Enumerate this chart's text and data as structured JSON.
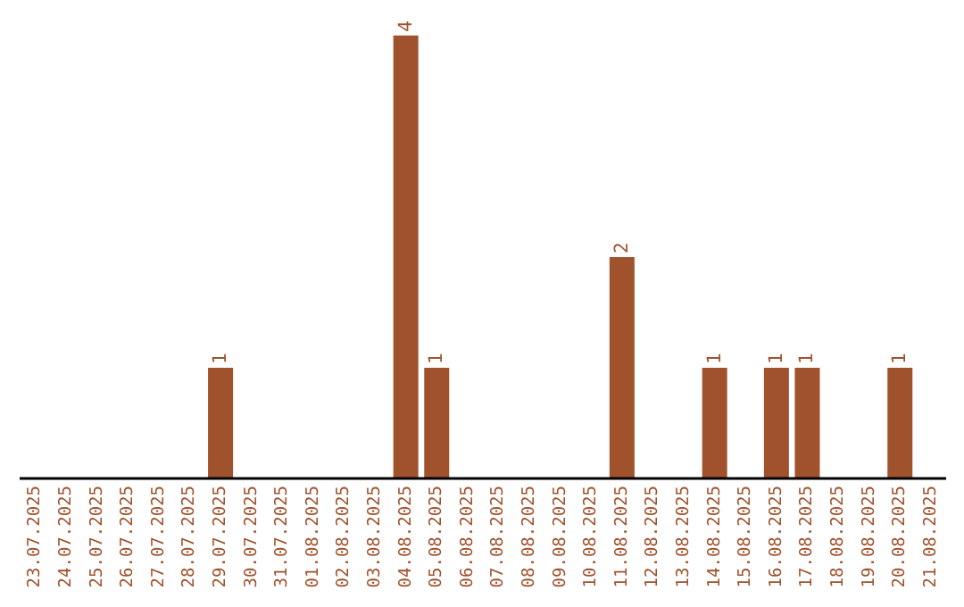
{
  "chart_data": {
    "type": "bar",
    "categories": [
      "23.07.2025",
      "24.07.2025",
      "25.07.2025",
      "26.07.2025",
      "27.07.2025",
      "28.07.2025",
      "29.07.2025",
      "30.07.2025",
      "31.07.2025",
      "01.08.2025",
      "02.08.2025",
      "03.08.2025",
      "04.08.2025",
      "05.08.2025",
      "06.08.2025",
      "07.08.2025",
      "08.08.2025",
      "09.08.2025",
      "10.08.2025",
      "11.08.2025",
      "12.08.2025",
      "13.08.2025",
      "14.08.2025",
      "15.08.2025",
      "16.08.2025",
      "17.08.2025",
      "18.08.2025",
      "19.08.2025",
      "20.08.2025",
      "21.08.2025"
    ],
    "values": [
      0,
      0,
      0,
      0,
      0,
      0,
      1,
      0,
      0,
      0,
      0,
      0,
      4,
      1,
      0,
      0,
      0,
      0,
      0,
      2,
      0,
      0,
      1,
      0,
      1,
      1,
      0,
      0,
      1,
      0
    ],
    "value_labels": [
      null,
      null,
      null,
      null,
      null,
      null,
      "1",
      null,
      null,
      null,
      null,
      null,
      "4",
      "1",
      null,
      null,
      null,
      null,
      null,
      "2",
      null,
      null,
      "1",
      null,
      "1",
      "1",
      null,
      null,
      "1",
      null
    ],
    "color": "#a0522d",
    "grid": false,
    "legend": false
  }
}
